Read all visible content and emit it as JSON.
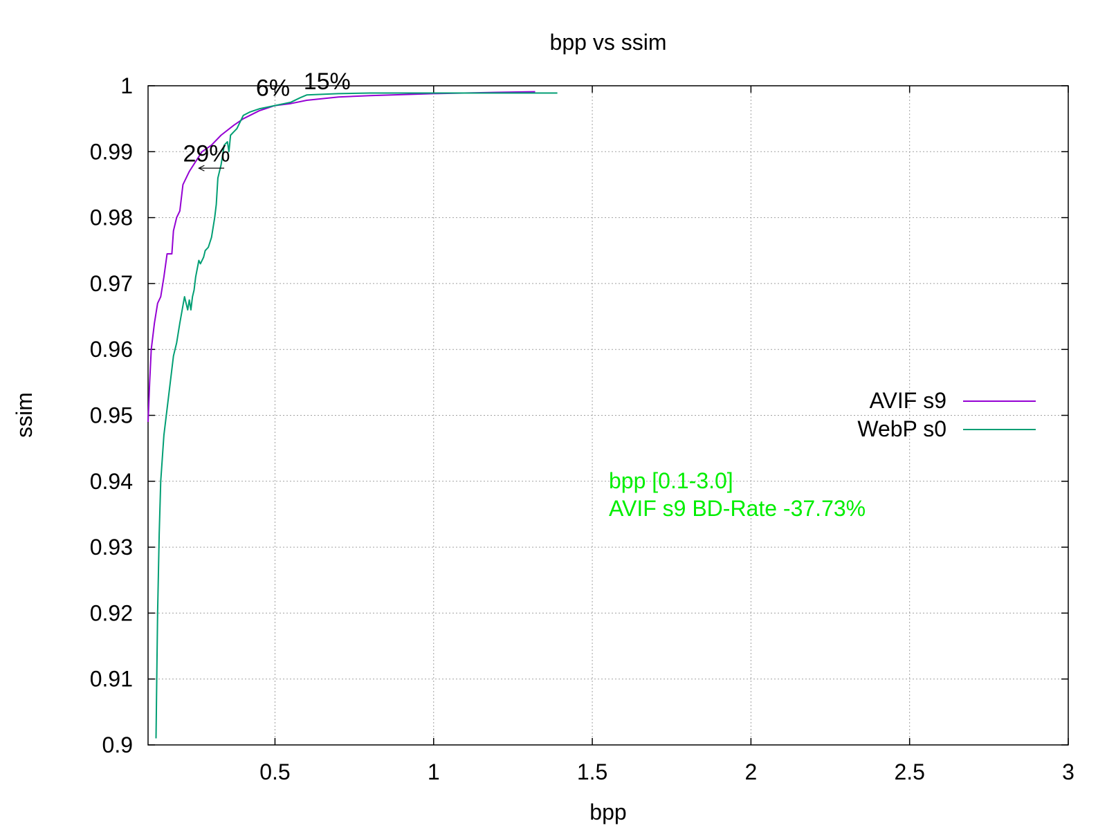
{
  "chart_data": {
    "type": "line",
    "title": "bpp vs ssim",
    "xlabel": "bpp",
    "ylabel": "ssim",
    "xlim": [
      0.1,
      3.0
    ],
    "ylim": [
      0.9,
      1.0
    ],
    "xticks": [
      0.5,
      1,
      1.5,
      2,
      2.5,
      3
    ],
    "xtick_labels": [
      "0.5",
      "1",
      "1.5",
      "2",
      "2.5",
      "3"
    ],
    "yticks": [
      0.9,
      0.91,
      0.92,
      0.93,
      0.94,
      0.95,
      0.96,
      0.97,
      0.98,
      0.99,
      1.0
    ],
    "ytick_labels": [
      "0.9",
      "0.91",
      "0.92",
      "0.93",
      "0.94",
      "0.95",
      "0.96",
      "0.97",
      "0.98",
      "0.99",
      "1"
    ],
    "grid": true,
    "legend_position": "right",
    "series": [
      {
        "name": "AVIF s9",
        "color": "#9400d3",
        "x": [
          0.1,
          0.105,
          0.11,
          0.12,
          0.13,
          0.14,
          0.15,
          0.16,
          0.17,
          0.175,
          0.18,
          0.19,
          0.2,
          0.21,
          0.22,
          0.23,
          0.25,
          0.27,
          0.3,
          0.33,
          0.37,
          0.4,
          0.45,
          0.5,
          0.55,
          0.6,
          0.7,
          0.8,
          1.0,
          1.2,
          1.32
        ],
        "y": [
          0.949,
          0.955,
          0.96,
          0.964,
          0.967,
          0.968,
          0.971,
          0.9745,
          0.9745,
          0.9745,
          0.978,
          0.98,
          0.981,
          0.985,
          0.986,
          0.987,
          0.9885,
          0.99,
          0.991,
          0.9925,
          0.994,
          0.995,
          0.9962,
          0.997,
          0.9973,
          0.9978,
          0.9983,
          0.9985,
          0.9988,
          0.999,
          0.9991
        ]
      },
      {
        "name": "WebP s0",
        "color": "#009e73",
        "x": [
          0.125,
          0.128,
          0.13,
          0.135,
          0.14,
          0.15,
          0.16,
          0.17,
          0.18,
          0.19,
          0.2,
          0.215,
          0.225,
          0.23,
          0.235,
          0.24,
          0.245,
          0.25,
          0.26,
          0.265,
          0.275,
          0.28,
          0.29,
          0.3,
          0.31,
          0.315,
          0.32,
          0.33,
          0.34,
          0.35,
          0.355,
          0.36,
          0.37,
          0.38,
          0.39,
          0.4,
          0.42,
          0.45,
          0.5,
          0.55,
          0.58,
          0.6,
          0.7,
          0.8,
          1.0,
          1.2,
          1.39
        ],
        "y": [
          0.901,
          0.912,
          0.92,
          0.932,
          0.94,
          0.947,
          0.951,
          0.955,
          0.959,
          0.961,
          0.964,
          0.968,
          0.966,
          0.9675,
          0.966,
          0.968,
          0.969,
          0.971,
          0.9735,
          0.973,
          0.974,
          0.975,
          0.9755,
          0.977,
          0.98,
          0.982,
          0.986,
          0.988,
          0.991,
          0.9915,
          0.99,
          0.9925,
          0.993,
          0.9935,
          0.9945,
          0.9955,
          0.996,
          0.9965,
          0.997,
          0.9975,
          0.9982,
          0.9986,
          0.9988,
          0.9989,
          0.9989,
          0.9989,
          0.9989
        ]
      }
    ],
    "annotations": [
      {
        "text": "29%",
        "x": 0.21,
        "y": 0.9885
      },
      {
        "text": "6%",
        "x": 0.44,
        "y": 0.9985
      },
      {
        "text": "15%",
        "x": 0.59,
        "y": 0.9995
      }
    ],
    "arrow": {
      "x_start": 0.34,
      "x_end": 0.26,
      "y": 0.9875
    },
    "notes": {
      "color": "#00ee00",
      "line1": "bpp [0.1-3.0]",
      "line2": "AVIF s9 BD-Rate -37.73%"
    }
  }
}
